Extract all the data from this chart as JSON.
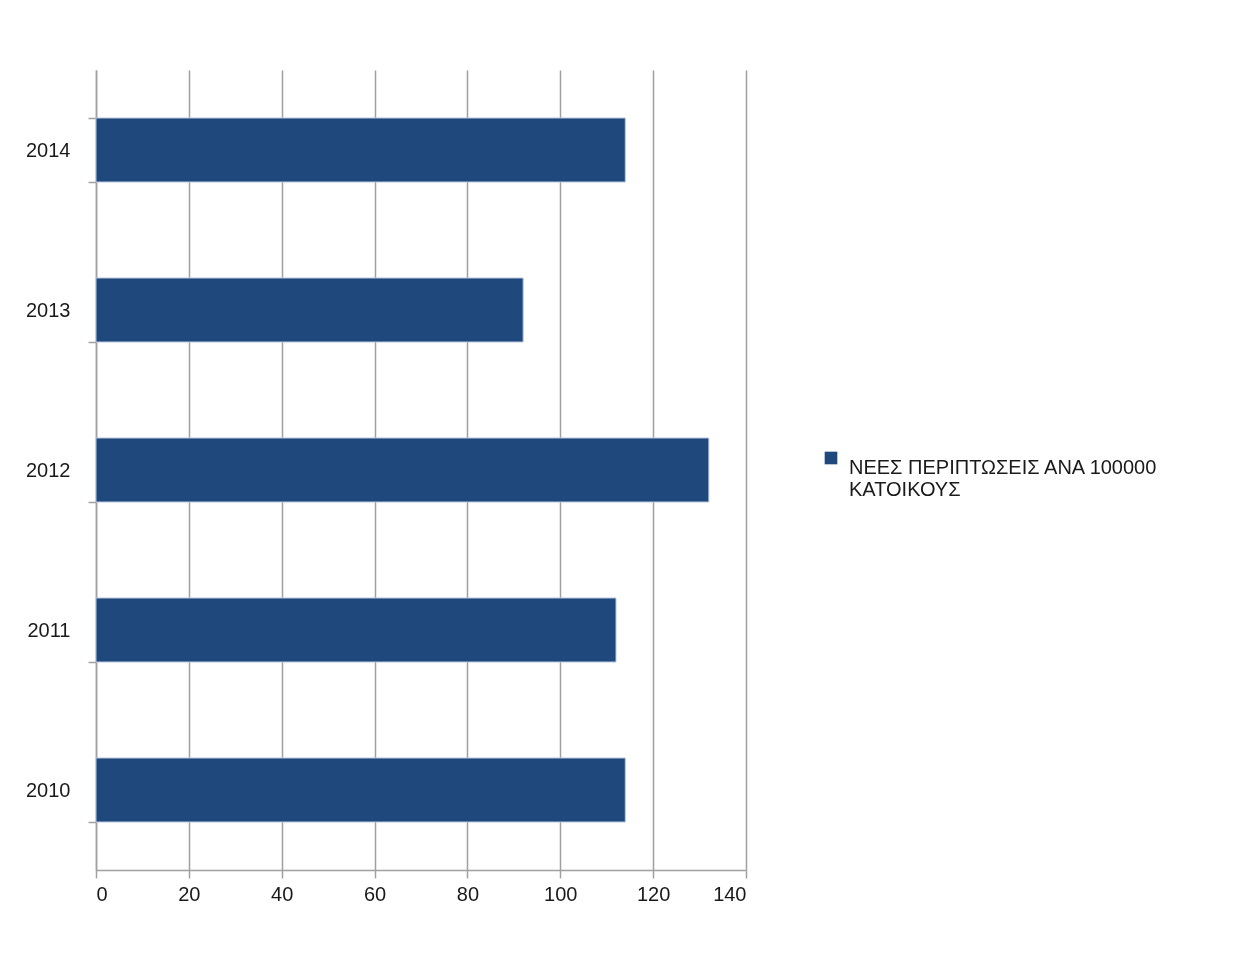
{
  "chart_data": {
    "type": "bar",
    "orientation": "horizontal",
    "categories": [
      "2014",
      "2013",
      "2012",
      "2011",
      "2010"
    ],
    "series": [
      {
        "name": "ΝΕΕΣ ΠΕΡΙΠΤΩΣΕΙΣ ΑΝΑ 100000 ΚΑΤΟΙΚΟΥΣ",
        "color": "#1f497d",
        "values": [
          114,
          92,
          132,
          112,
          114
        ]
      }
    ],
    "xlim": [
      0,
      140
    ],
    "xticks": [
      0,
      20,
      40,
      60,
      80,
      100,
      120,
      140
    ],
    "grid": "x",
    "legend": "right"
  }
}
